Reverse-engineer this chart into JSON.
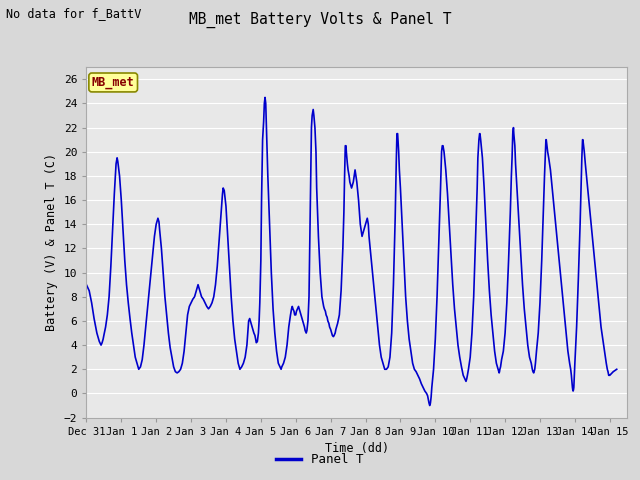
{
  "title": "MB_met Battery Volts & Panel T",
  "ylabel": "Battery (V) & Panel T (C)",
  "xlabel": "Time (dd)",
  "no_data_text": "No data for f_BattV",
  "legend_label": "Panel T",
  "legend_line_color": "#0000cc",
  "line_color": "#0000cc",
  "line_width": 1.2,
  "ylim": [
    -2,
    27
  ],
  "yticks": [
    -2,
    0,
    2,
    4,
    6,
    8,
    10,
    12,
    14,
    16,
    18,
    20,
    22,
    24,
    26
  ],
  "bg_color": "#d8d8d8",
  "axes_bg_color": "#e8e8e8",
  "grid_color": "#ffffff",
  "start_day": 0,
  "end_day": 15.5,
  "xtick_labels": [
    "Dec 31",
    "Jan 1",
    "Jan 2",
    "Jan 3",
    "Jan 4",
    "Jan 5",
    "Jan 6",
    "Jan 7",
    "Jan 8",
    "Jan 9",
    "Jan 10",
    "Jan 11",
    "Jan 12",
    "Jan 13",
    "Jan 14",
    "Jan 15"
  ],
  "xtick_positions": [
    0,
    1,
    2,
    3,
    4,
    5,
    6,
    7,
    8,
    9,
    10,
    11,
    12,
    13,
    14,
    15
  ],
  "series_label": "MB_met",
  "series_label_box_color": "#ffff99",
  "series_label_text_color": "#880000",
  "panel_t_data": [
    [
      0.0,
      9.0
    ],
    [
      0.08,
      8.5
    ],
    [
      0.15,
      7.5
    ],
    [
      0.22,
      6.2
    ],
    [
      0.3,
      5.0
    ],
    [
      0.37,
      4.3
    ],
    [
      0.42,
      4.0
    ],
    [
      0.45,
      4.2
    ],
    [
      0.48,
      4.5
    ],
    [
      0.5,
      4.8
    ],
    [
      0.55,
      5.5
    ],
    [
      0.6,
      6.5
    ],
    [
      0.65,
      8.0
    ],
    [
      0.7,
      10.5
    ],
    [
      0.75,
      13.5
    ],
    [
      0.8,
      16.5
    ],
    [
      0.85,
      19.0
    ],
    [
      0.88,
      19.5
    ],
    [
      0.9,
      19.2
    ],
    [
      0.95,
      18.0
    ],
    [
      1.0,
      16.0
    ],
    [
      1.05,
      13.5
    ],
    [
      1.1,
      11.0
    ],
    [
      1.15,
      9.0
    ],
    [
      1.2,
      7.5
    ],
    [
      1.25,
      6.2
    ],
    [
      1.3,
      5.0
    ],
    [
      1.35,
      4.0
    ],
    [
      1.4,
      3.0
    ],
    [
      1.45,
      2.5
    ],
    [
      1.5,
      2.0
    ],
    [
      1.55,
      2.2
    ],
    [
      1.6,
      2.8
    ],
    [
      1.65,
      4.0
    ],
    [
      1.7,
      5.5
    ],
    [
      1.75,
      7.0
    ],
    [
      1.8,
      8.5
    ],
    [
      1.85,
      10.0
    ],
    [
      1.9,
      11.5
    ],
    [
      1.95,
      13.0
    ],
    [
      2.0,
      14.0
    ],
    [
      2.05,
      14.5
    ],
    [
      2.08,
      14.2
    ],
    [
      2.1,
      13.5
    ],
    [
      2.15,
      12.0
    ],
    [
      2.2,
      10.0
    ],
    [
      2.25,
      8.0
    ],
    [
      2.3,
      6.5
    ],
    [
      2.35,
      5.0
    ],
    [
      2.4,
      3.8
    ],
    [
      2.45,
      3.0
    ],
    [
      2.5,
      2.2
    ],
    [
      2.55,
      1.8
    ],
    [
      2.6,
      1.7
    ],
    [
      2.65,
      1.8
    ],
    [
      2.7,
      2.0
    ],
    [
      2.75,
      2.5
    ],
    [
      2.8,
      3.5
    ],
    [
      2.85,
      5.0
    ],
    [
      2.9,
      6.5
    ],
    [
      2.95,
      7.2
    ],
    [
      3.0,
      7.5
    ],
    [
      3.05,
      7.8
    ],
    [
      3.1,
      8.0
    ],
    [
      3.15,
      8.5
    ],
    [
      3.2,
      9.0
    ],
    [
      3.25,
      8.5
    ],
    [
      3.3,
      8.0
    ],
    [
      3.35,
      7.8
    ],
    [
      3.4,
      7.5
    ],
    [
      3.45,
      7.2
    ],
    [
      3.5,
      7.0
    ],
    [
      3.55,
      7.2
    ],
    [
      3.6,
      7.5
    ],
    [
      3.65,
      8.0
    ],
    [
      3.7,
      9.0
    ],
    [
      3.75,
      10.5
    ],
    [
      3.8,
      12.5
    ],
    [
      3.85,
      14.5
    ],
    [
      3.9,
      16.5
    ],
    [
      3.92,
      17.0
    ],
    [
      3.95,
      16.8
    ],
    [
      4.0,
      15.5
    ],
    [
      4.05,
      13.0
    ],
    [
      4.1,
      10.5
    ],
    [
      4.15,
      8.0
    ],
    [
      4.2,
      6.0
    ],
    [
      4.25,
      4.5
    ],
    [
      4.3,
      3.5
    ],
    [
      4.35,
      2.5
    ],
    [
      4.4,
      2.0
    ],
    [
      4.45,
      2.2
    ],
    [
      4.5,
      2.5
    ],
    [
      4.55,
      3.0
    ],
    [
      4.6,
      4.0
    ],
    [
      4.65,
      6.0
    ],
    [
      4.68,
      6.2
    ],
    [
      4.7,
      6.0
    ],
    [
      4.72,
      5.8
    ],
    [
      4.75,
      5.5
    ],
    [
      4.78,
      5.2
    ],
    [
      4.8,
      5.0
    ],
    [
      4.83,
      4.8
    ],
    [
      4.85,
      4.5
    ],
    [
      4.87,
      4.2
    ],
    [
      4.9,
      4.3
    ],
    [
      4.93,
      5.0
    ],
    [
      4.95,
      6.0
    ],
    [
      4.97,
      7.5
    ],
    [
      5.0,
      11.0
    ],
    [
      5.02,
      16.0
    ],
    [
      5.05,
      21.0
    ],
    [
      5.08,
      22.5
    ],
    [
      5.1,
      24.0
    ],
    [
      5.12,
      24.5
    ],
    [
      5.14,
      24.0
    ],
    [
      5.15,
      23.0
    ],
    [
      5.17,
      21.0
    ],
    [
      5.2,
      18.0
    ],
    [
      5.25,
      14.0
    ],
    [
      5.3,
      10.0
    ],
    [
      5.35,
      7.0
    ],
    [
      5.4,
      5.0
    ],
    [
      5.45,
      3.5
    ],
    [
      5.5,
      2.5
    ],
    [
      5.55,
      2.2
    ],
    [
      5.58,
      2.0
    ],
    [
      5.6,
      2.2
    ],
    [
      5.65,
      2.5
    ],
    [
      5.7,
      3.0
    ],
    [
      5.75,
      4.0
    ],
    [
      5.8,
      5.5
    ],
    [
      5.85,
      6.5
    ],
    [
      5.88,
      7.0
    ],
    [
      5.9,
      7.2
    ],
    [
      5.92,
      7.0
    ],
    [
      5.95,
      6.8
    ],
    [
      5.97,
      6.5
    ],
    [
      6.0,
      6.5
    ],
    [
      6.02,
      6.8
    ],
    [
      6.05,
      7.0
    ],
    [
      6.08,
      7.2
    ],
    [
      6.1,
      7.0
    ],
    [
      6.12,
      6.8
    ],
    [
      6.15,
      6.5
    ],
    [
      6.17,
      6.3
    ],
    [
      6.2,
      6.0
    ],
    [
      6.22,
      5.8
    ],
    [
      6.25,
      5.5
    ],
    [
      6.27,
      5.2
    ],
    [
      6.3,
      5.0
    ],
    [
      6.32,
      5.2
    ],
    [
      6.35,
      6.0
    ],
    [
      6.38,
      8.0
    ],
    [
      6.4,
      12.0
    ],
    [
      6.43,
      18.0
    ],
    [
      6.45,
      22.0
    ],
    [
      6.47,
      23.0
    ],
    [
      6.5,
      23.5
    ],
    [
      6.52,
      23.0
    ],
    [
      6.55,
      22.0
    ],
    [
      6.58,
      20.0
    ],
    [
      6.6,
      17.0
    ],
    [
      6.65,
      13.0
    ],
    [
      6.7,
      10.0
    ],
    [
      6.75,
      8.0
    ],
    [
      6.78,
      7.5
    ],
    [
      6.8,
      7.2
    ],
    [
      6.82,
      7.0
    ],
    [
      6.85,
      6.8
    ],
    [
      6.87,
      6.5
    ],
    [
      6.9,
      6.3
    ],
    [
      6.92,
      6.0
    ],
    [
      6.95,
      5.8
    ],
    [
      6.97,
      5.5
    ],
    [
      7.0,
      5.3
    ],
    [
      7.03,
      5.0
    ],
    [
      7.05,
      4.8
    ],
    [
      7.08,
      4.7
    ],
    [
      7.1,
      4.8
    ],
    [
      7.13,
      5.0
    ],
    [
      7.15,
      5.3
    ],
    [
      7.2,
      5.8
    ],
    [
      7.25,
      6.5
    ],
    [
      7.3,
      8.5
    ],
    [
      7.35,
      12.0
    ],
    [
      7.38,
      15.0
    ],
    [
      7.4,
      18.0
    ],
    [
      7.42,
      20.5
    ],
    [
      7.44,
      20.5
    ],
    [
      7.45,
      20.0
    ],
    [
      7.48,
      19.0
    ],
    [
      7.5,
      18.5
    ],
    [
      7.53,
      18.0
    ],
    [
      7.55,
      17.5
    ],
    [
      7.6,
      17.0
    ],
    [
      7.65,
      17.5
    ],
    [
      7.7,
      18.5
    ],
    [
      7.75,
      17.5
    ],
    [
      7.8,
      16.0
    ],
    [
      7.85,
      14.0
    ],
    [
      7.9,
      13.0
    ],
    [
      7.95,
      13.5
    ],
    [
      8.0,
      14.0
    ],
    [
      8.05,
      14.5
    ],
    [
      8.08,
      14.0
    ],
    [
      8.1,
      13.0
    ],
    [
      8.15,
      11.5
    ],
    [
      8.2,
      10.0
    ],
    [
      8.25,
      8.5
    ],
    [
      8.3,
      7.0
    ],
    [
      8.35,
      5.5
    ],
    [
      8.4,
      4.0
    ],
    [
      8.45,
      3.0
    ],
    [
      8.5,
      2.5
    ],
    [
      8.55,
      2.0
    ],
    [
      8.6,
      2.0
    ],
    [
      8.65,
      2.2
    ],
    [
      8.7,
      3.0
    ],
    [
      8.75,
      5.0
    ],
    [
      8.8,
      9.0
    ],
    [
      8.85,
      14.5
    ],
    [
      8.88,
      19.0
    ],
    [
      8.9,
      21.5
    ],
    [
      8.92,
      21.5
    ],
    [
      8.93,
      21.0
    ],
    [
      8.95,
      20.0
    ],
    [
      8.97,
      18.5
    ],
    [
      9.0,
      17.0
    ],
    [
      9.05,
      14.0
    ],
    [
      9.1,
      11.0
    ],
    [
      9.15,
      8.0
    ],
    [
      9.2,
      6.0
    ],
    [
      9.25,
      4.5
    ],
    [
      9.3,
      3.5
    ],
    [
      9.35,
      2.5
    ],
    [
      9.4,
      2.0
    ],
    [
      9.45,
      1.8
    ],
    [
      9.5,
      1.5
    ],
    [
      9.55,
      1.2
    ],
    [
      9.6,
      0.8
    ],
    [
      9.65,
      0.5
    ],
    [
      9.7,
      0.2
    ],
    [
      9.75,
      0.0
    ],
    [
      9.78,
      -0.2
    ],
    [
      9.8,
      -0.5
    ],
    [
      9.82,
      -0.8
    ],
    [
      9.84,
      -1.0
    ],
    [
      9.86,
      -0.8
    ],
    [
      9.88,
      -0.3
    ],
    [
      9.9,
      0.5
    ],
    [
      9.95,
      2.0
    ],
    [
      10.0,
      4.5
    ],
    [
      10.05,
      8.0
    ],
    [
      10.1,
      12.5
    ],
    [
      10.15,
      17.0
    ],
    [
      10.18,
      20.0
    ],
    [
      10.2,
      20.5
    ],
    [
      10.22,
      20.5
    ],
    [
      10.25,
      20.0
    ],
    [
      10.3,
      18.5
    ],
    [
      10.35,
      16.5
    ],
    [
      10.4,
      14.0
    ],
    [
      10.45,
      11.5
    ],
    [
      10.5,
      9.0
    ],
    [
      10.55,
      7.0
    ],
    [
      10.6,
      5.5
    ],
    [
      10.65,
      4.0
    ],
    [
      10.7,
      3.0
    ],
    [
      10.75,
      2.2
    ],
    [
      10.8,
      1.5
    ],
    [
      10.85,
      1.2
    ],
    [
      10.88,
      1.0
    ],
    [
      10.9,
      1.2
    ],
    [
      10.92,
      1.5
    ],
    [
      10.95,
      2.0
    ],
    [
      11.0,
      3.0
    ],
    [
      11.05,
      5.0
    ],
    [
      11.1,
      8.0
    ],
    [
      11.15,
      12.5
    ],
    [
      11.2,
      17.0
    ],
    [
      11.22,
      19.5
    ],
    [
      11.25,
      21.0
    ],
    [
      11.27,
      21.5
    ],
    [
      11.28,
      21.5
    ],
    [
      11.3,
      21.0
    ],
    [
      11.35,
      19.5
    ],
    [
      11.4,
      17.0
    ],
    [
      11.45,
      14.0
    ],
    [
      11.5,
      11.0
    ],
    [
      11.55,
      8.5
    ],
    [
      11.6,
      6.5
    ],
    [
      11.65,
      5.0
    ],
    [
      11.7,
      3.5
    ],
    [
      11.75,
      2.5
    ],
    [
      11.8,
      2.0
    ],
    [
      11.82,
      1.8
    ],
    [
      11.83,
      1.7
    ],
    [
      11.84,
      1.8
    ],
    [
      11.85,
      2.0
    ],
    [
      11.87,
      2.2
    ],
    [
      11.9,
      2.8
    ],
    [
      11.95,
      3.5
    ],
    [
      12.0,
      5.0
    ],
    [
      12.05,
      7.5
    ],
    [
      12.1,
      11.0
    ],
    [
      12.15,
      15.0
    ],
    [
      12.18,
      18.0
    ],
    [
      12.2,
      19.5
    ],
    [
      12.22,
      21.5
    ],
    [
      12.24,
      22.0
    ],
    [
      12.25,
      21.5
    ],
    [
      12.28,
      20.5
    ],
    [
      12.3,
      19.0
    ],
    [
      12.35,
      16.5
    ],
    [
      12.4,
      14.0
    ],
    [
      12.45,
      11.5
    ],
    [
      12.5,
      9.0
    ],
    [
      12.55,
      7.0
    ],
    [
      12.6,
      5.5
    ],
    [
      12.65,
      4.0
    ],
    [
      12.7,
      3.0
    ],
    [
      12.75,
      2.5
    ],
    [
      12.78,
      2.0
    ],
    [
      12.8,
      1.8
    ],
    [
      12.82,
      1.7
    ],
    [
      12.83,
      1.8
    ],
    [
      12.85,
      2.0
    ],
    [
      12.87,
      2.5
    ],
    [
      12.9,
      3.5
    ],
    [
      12.95,
      5.0
    ],
    [
      13.0,
      7.5
    ],
    [
      13.05,
      11.0
    ],
    [
      13.1,
      15.5
    ],
    [
      13.13,
      18.0
    ],
    [
      13.15,
      19.5
    ],
    [
      13.17,
      21.0
    ],
    [
      13.18,
      21.0
    ],
    [
      13.2,
      20.5
    ],
    [
      13.22,
      20.0
    ],
    [
      13.25,
      19.5
    ],
    [
      13.3,
      18.5
    ],
    [
      13.35,
      17.0
    ],
    [
      13.4,
      15.5
    ],
    [
      13.45,
      14.0
    ],
    [
      13.5,
      12.5
    ],
    [
      13.55,
      11.0
    ],
    [
      13.6,
      9.5
    ],
    [
      13.65,
      8.0
    ],
    [
      13.7,
      6.5
    ],
    [
      13.75,
      5.0
    ],
    [
      13.8,
      3.5
    ],
    [
      13.85,
      2.5
    ],
    [
      13.88,
      2.0
    ],
    [
      13.9,
      1.5
    ],
    [
      13.92,
      0.8
    ],
    [
      13.93,
      0.5
    ],
    [
      13.94,
      0.3
    ],
    [
      13.95,
      0.2
    ],
    [
      13.96,
      0.3
    ],
    [
      13.97,
      0.5
    ],
    [
      14.0,
      2.5
    ],
    [
      14.05,
      5.5
    ],
    [
      14.1,
      9.5
    ],
    [
      14.15,
      14.0
    ],
    [
      14.18,
      17.5
    ],
    [
      14.2,
      19.5
    ],
    [
      14.22,
      21.0
    ],
    [
      14.23,
      21.0
    ],
    [
      14.25,
      20.5
    ],
    [
      14.27,
      20.0
    ],
    [
      14.3,
      19.0
    ],
    [
      14.35,
      17.5
    ],
    [
      14.4,
      16.0
    ],
    [
      14.45,
      14.5
    ],
    [
      14.5,
      13.0
    ],
    [
      14.55,
      11.5
    ],
    [
      14.6,
      10.0
    ],
    [
      14.65,
      8.5
    ],
    [
      14.7,
      7.0
    ],
    [
      14.75,
      5.5
    ],
    [
      14.8,
      4.5
    ],
    [
      14.85,
      3.5
    ],
    [
      14.9,
      2.5
    ],
    [
      14.93,
      2.0
    ],
    [
      14.95,
      1.8
    ],
    [
      14.97,
      1.5
    ],
    [
      15.0,
      1.5
    ],
    [
      15.1,
      1.8
    ],
    [
      15.2,
      2.0
    ]
  ]
}
